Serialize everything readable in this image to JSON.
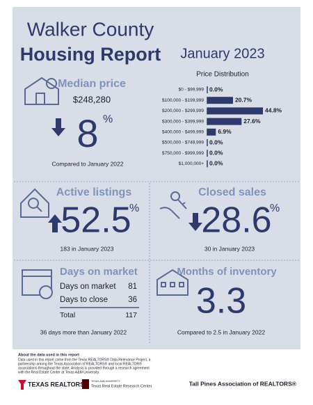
{
  "header": {
    "title_line1": "Walker County",
    "title_line2": "Housing Report",
    "period": "January 2023"
  },
  "median_price": {
    "heading": "Median price",
    "value": "$248,280",
    "change": "8",
    "unit": "%",
    "comparison": "Compared to January 2022"
  },
  "price_distribution": {
    "title": "Price Distribution",
    "categories": [
      "$0 - $99,999",
      "$100,000 - $199,999",
      "$200,000 - $299,999",
      "$300,000 - $399,999",
      "$400,000 - $499,999",
      "$500,000 - $749,999",
      "$750,000 - $999,999",
      "$1,000,000+"
    ],
    "values": [
      0.0,
      20.7,
      44.8,
      27.6,
      6.9,
      0.0,
      0.0,
      0.0
    ],
    "value_labels": [
      "0.0%",
      "20.7%",
      "44.8%",
      "27.6%",
      "6.9%",
      "0.0%",
      "0.0%",
      "0.0%"
    ],
    "color": "#2e3a6b"
  },
  "active_listings": {
    "heading": "Active listings",
    "change": "52.5",
    "unit": "%",
    "comparison": "183 in January 2023"
  },
  "closed_sales": {
    "heading": "Closed sales",
    "change": "28.6",
    "unit": "%",
    "comparison": "30 in January 2023"
  },
  "days_on_market": {
    "heading": "Days on market",
    "rows": [
      [
        "Days on market",
        81
      ],
      [
        "Days to close",
        36
      ],
      [
        "Total",
        117
      ]
    ],
    "comparison": "36 days more than January 2022"
  },
  "months_of_inventory": {
    "heading": "Months of inventory",
    "value": "3.3",
    "comparison": "Compared to 2.5 in January 2022"
  },
  "footer": {
    "about_title": "About the data used in this report",
    "about_lines": [
      "Data used in this report come from the Texas REALTORS® Data Relevance Project, a",
      "partnership among the Texas Association of REALTORS® and local REALTOR®",
      "associations throughout the state. Analysis is provided through a research agreement",
      "with the Real Estate Center at Texas A&M University."
    ],
    "logo1": "TEXAS REALTORS",
    "logo2_top": "TEXAS A&M UNIVERSITY",
    "logo2": "Texas Real Estate Research Center",
    "association": "Tall Pines Association of REALTORS®"
  }
}
